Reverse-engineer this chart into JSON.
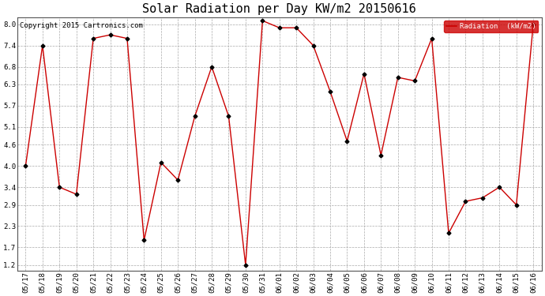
{
  "title": "Solar Radiation per Day KW/m2 20150616",
  "copyright": "Copyright 2015 Cartronics.com",
  "legend_label": "Radiation  (kW/m2)",
  "dates": [
    "05/17",
    "05/18",
    "05/19",
    "05/20",
    "05/21",
    "05/22",
    "05/23",
    "05/24",
    "05/25",
    "05/26",
    "05/27",
    "05/28",
    "05/29",
    "05/30",
    "05/31",
    "06/01",
    "06/02",
    "06/03",
    "06/04",
    "06/05",
    "06/06",
    "06/07",
    "06/08",
    "06/09",
    "06/10",
    "06/11",
    "06/12",
    "06/13",
    "06/14",
    "06/15",
    "06/16"
  ],
  "values": [
    4.0,
    7.4,
    3.4,
    3.2,
    7.6,
    7.7,
    7.6,
    1.9,
    4.1,
    3.6,
    5.4,
    6.8,
    5.4,
    1.2,
    8.1,
    7.9,
    7.9,
    7.4,
    6.1,
    4.7,
    6.6,
    4.3,
    6.5,
    6.4,
    7.6,
    2.1,
    3.0,
    3.1,
    3.4,
    2.9,
    8.0
  ],
  "y_ticks": [
    1.2,
    1.7,
    2.3,
    2.9,
    3.4,
    4.0,
    4.6,
    5.1,
    5.7,
    6.3,
    6.8,
    7.4,
    8.0
  ],
  "ylim": [
    1.05,
    8.2
  ],
  "line_color": "#cc0000",
  "marker_color": "#000000",
  "bg_color": "#ffffff",
  "plot_bg_color": "#ffffff",
  "grid_color": "#aaaaaa",
  "legend_bg": "#cc0000",
  "legend_text_color": "#ffffff",
  "title_fontsize": 11,
  "tick_fontsize": 6.5,
  "copyright_fontsize": 6.5
}
